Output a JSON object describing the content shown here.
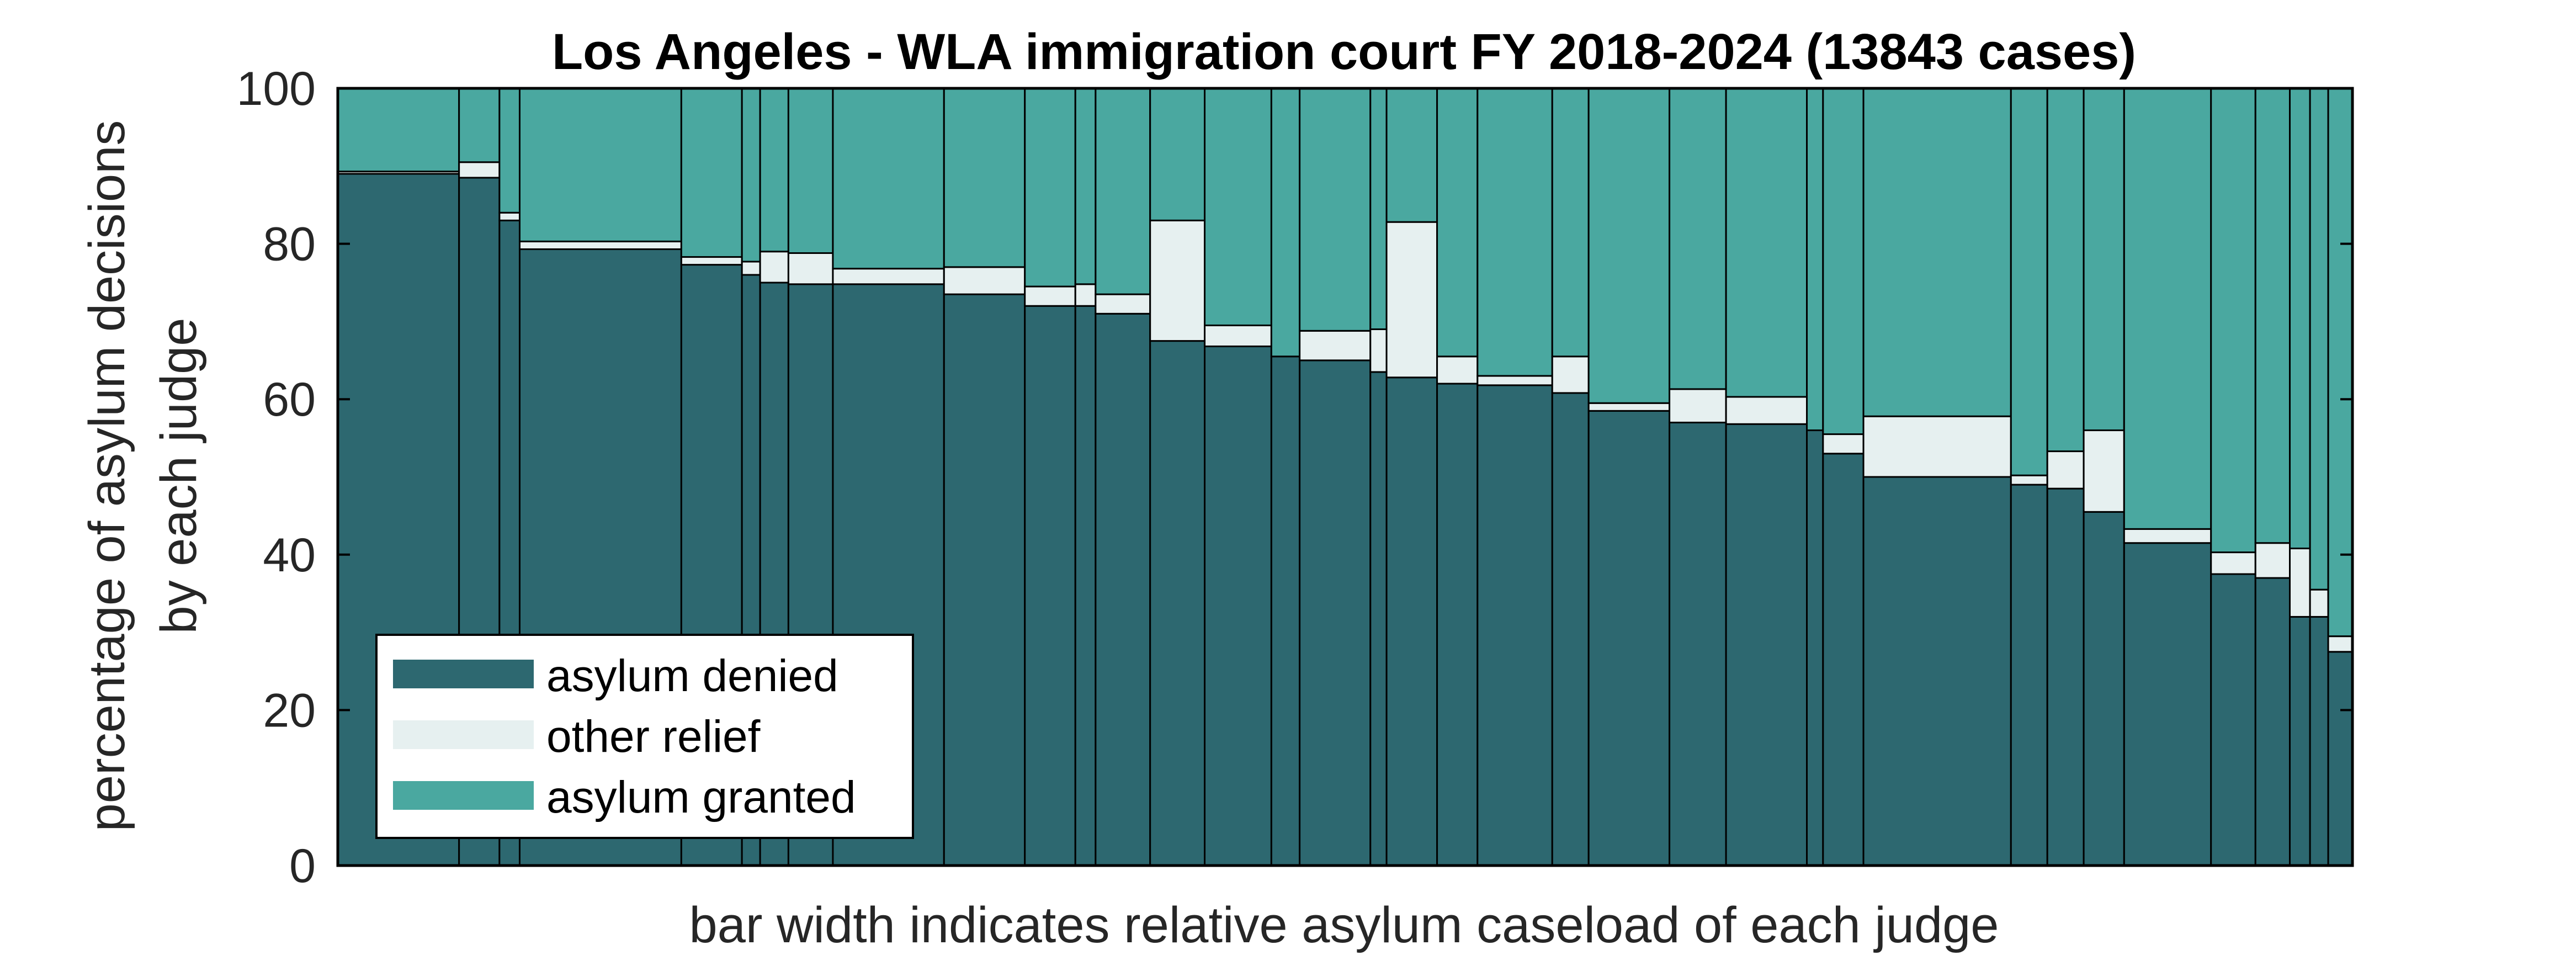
{
  "chart_data": {
    "type": "bar",
    "subtype": "stacked-mosaic",
    "title": "Los Angeles - WLA immigration court FY 2018-2024 (13843 cases)",
    "xlabel": "bar width indicates relative asylum caseload of each judge",
    "ylabel_lines": [
      "percentage of asylum decisions",
      "by each judge"
    ],
    "ylim": [
      0,
      100
    ],
    "yticks": [
      "0",
      "20",
      "40",
      "60",
      "80",
      "100"
    ],
    "grid": false,
    "legend_position": "bottom-left",
    "colors": {
      "denied": "#2d6870",
      "other": "#e6f0f0",
      "granted": "#4aa8a0",
      "outline": "#000000"
    },
    "series": [
      {
        "key": "denied",
        "name": "asylum denied"
      },
      {
        "key": "other",
        "name": "other relief"
      },
      {
        "key": "granted",
        "name": "asylum granted"
      }
    ],
    "judges": [
      {
        "width": 6.0,
        "denied": 89.0,
        "other": 0.3
      },
      {
        "width": 2.0,
        "denied": 88.5,
        "other": 2.0
      },
      {
        "width": 1.0,
        "denied": 83.0,
        "other": 1.0
      },
      {
        "width": 8.0,
        "denied": 79.3,
        "other": 1.0
      },
      {
        "width": 3.0,
        "denied": 77.3,
        "other": 1.0
      },
      {
        "width": 0.9,
        "denied": 76.0,
        "other": 1.7
      },
      {
        "width": 1.4,
        "denied": 75.0,
        "other": 4.0
      },
      {
        "width": 2.2,
        "denied": 74.8,
        "other": 4.0
      },
      {
        "width": 5.5,
        "denied": 74.8,
        "other": 2.0
      },
      {
        "width": 4.0,
        "denied": 73.5,
        "other": 3.5
      },
      {
        "width": 2.5,
        "denied": 72.0,
        "other": 2.5
      },
      {
        "width": 1.0,
        "denied": 72.0,
        "other": 2.8
      },
      {
        "width": 2.7,
        "denied": 71.0,
        "other": 2.5
      },
      {
        "width": 2.7,
        "denied": 67.5,
        "other": 15.5
      },
      {
        "width": 3.3,
        "denied": 66.8,
        "other": 2.7
      },
      {
        "width": 1.4,
        "denied": 65.5,
        "other": 0.0
      },
      {
        "width": 3.5,
        "denied": 65.0,
        "other": 3.8
      },
      {
        "width": 0.8,
        "denied": 63.5,
        "other": 5.5
      },
      {
        "width": 2.5,
        "denied": 62.8,
        "other": 20.0
      },
      {
        "width": 2.0,
        "denied": 62.0,
        "other": 3.5
      },
      {
        "width": 3.7,
        "denied": 61.8,
        "other": 1.2
      },
      {
        "width": 1.8,
        "denied": 60.8,
        "other": 4.7
      },
      {
        "width": 4.0,
        "denied": 58.5,
        "other": 1.0
      },
      {
        "width": 2.8,
        "denied": 57.0,
        "other": 4.3
      },
      {
        "width": 4.0,
        "denied": 56.8,
        "other": 3.5
      },
      {
        "width": 0.8,
        "denied": 56.0,
        "other": 0.0
      },
      {
        "width": 2.0,
        "denied": 53.0,
        "other": 2.5
      },
      {
        "width": 7.3,
        "denied": 50.0,
        "other": 7.8
      },
      {
        "width": 1.8,
        "denied": 49.0,
        "other": 1.2
      },
      {
        "width": 1.8,
        "denied": 48.5,
        "other": 4.8
      },
      {
        "width": 2.0,
        "denied": 45.5,
        "other": 10.5
      },
      {
        "width": 4.3,
        "denied": 41.5,
        "other": 1.8
      },
      {
        "width": 2.2,
        "denied": 37.5,
        "other": 2.8
      },
      {
        "width": 1.7,
        "denied": 37.0,
        "other": 4.5
      },
      {
        "width": 1.0,
        "denied": 32.0,
        "other": 8.8
      },
      {
        "width": 0.9,
        "denied": 32.0,
        "other": 3.5
      },
      {
        "width": 1.2,
        "denied": 27.5,
        "other": 2.0
      }
    ]
  }
}
